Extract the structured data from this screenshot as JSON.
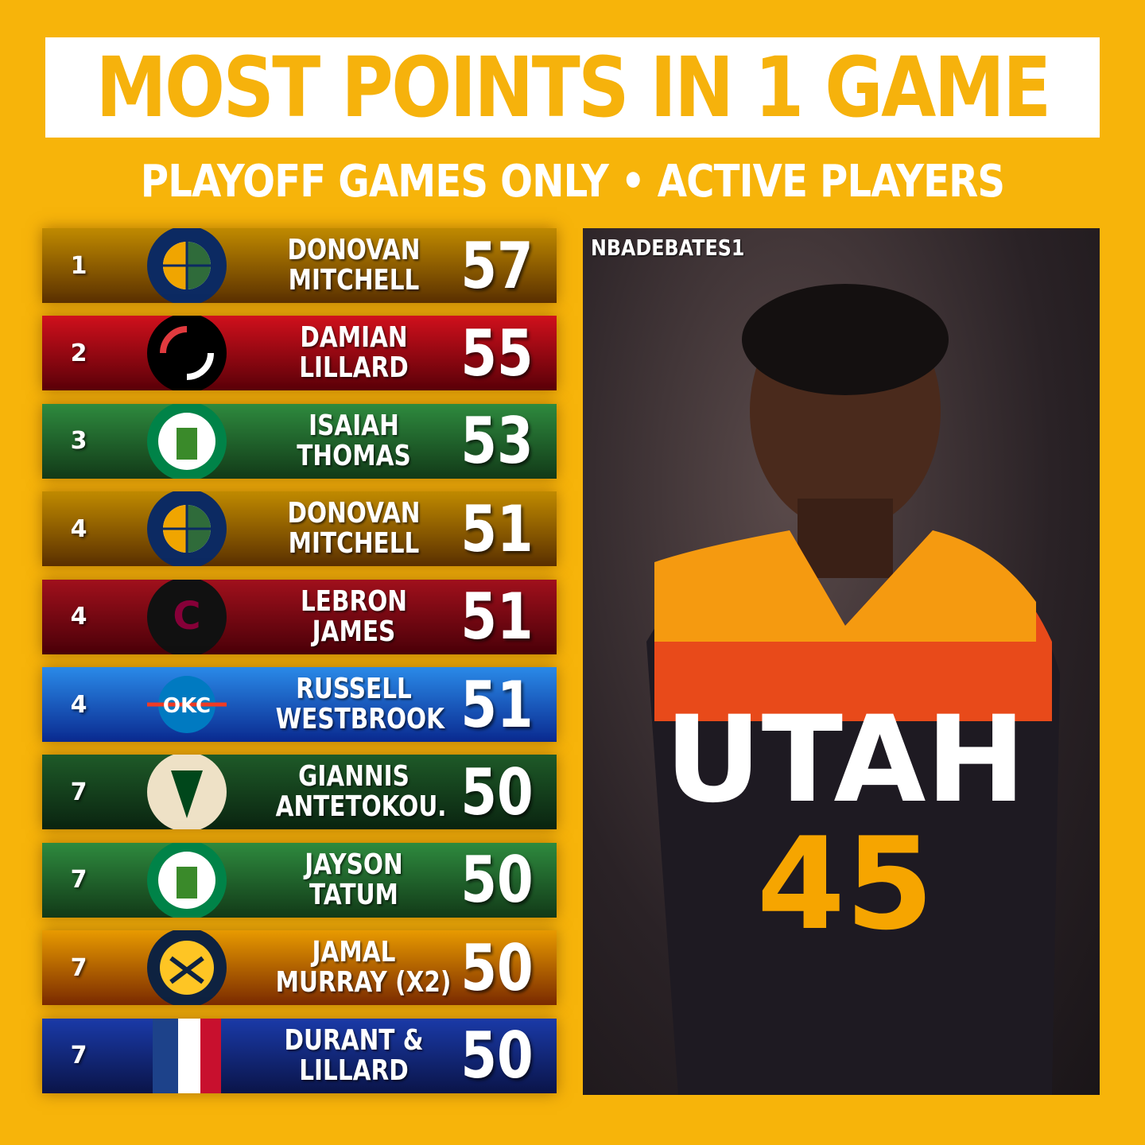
{
  "title": "MOST POINTS IN 1 GAME",
  "subtitle": "PLAYOFF GAMES ONLY • ACTIVE PLAYERS",
  "watermark": "NBADEBATES1",
  "jersey": {
    "team_text": "UTAH",
    "number": "45"
  },
  "rows": [
    {
      "rank": "1",
      "name1": "DONOVAN",
      "name2": "MITCHELL",
      "points": "57",
      "team": "jazz",
      "colors": [
        "#c08a00",
        "#5a3000"
      ]
    },
    {
      "rank": "2",
      "name1": "DAMIAN",
      "name2": "LILLARD",
      "points": "55",
      "team": "blazers",
      "colors": [
        "#d0101c",
        "#5a0008"
      ]
    },
    {
      "rank": "3",
      "name1": "ISAIAH",
      "name2": "THOMAS",
      "points": "53",
      "team": "celtics",
      "colors": [
        "#2e8a3e",
        "#123a18"
      ]
    },
    {
      "rank": "4",
      "name1": "DONOVAN",
      "name2": "MITCHELL",
      "points": "51",
      "team": "jazz",
      "colors": [
        "#c08a00",
        "#5a3000"
      ]
    },
    {
      "rank": "4",
      "name1": "LEBRON",
      "name2": "JAMES",
      "points": "51",
      "team": "cavaliers",
      "colors": [
        "#a0101c",
        "#4a0008"
      ]
    },
    {
      "rank": "4",
      "name1": "RUSSELL",
      "name2": "WESTBROOK",
      "points": "51",
      "team": "thunder",
      "colors": [
        "#2a8ae8",
        "#0a2a90"
      ]
    },
    {
      "rank": "7",
      "name1": "GIANNIS",
      "name2": "ANTETOKOU.",
      "points": "50",
      "team": "bucks",
      "colors": [
        "#1e5a28",
        "#0a2410"
      ]
    },
    {
      "rank": "7",
      "name1": "JAYSON",
      "name2": "TATUM",
      "points": "50",
      "team": "celtics",
      "colors": [
        "#2e8a3e",
        "#123a18"
      ]
    },
    {
      "rank": "7",
      "name1": "JAMAL",
      "name2": "MURRAY (X2)",
      "points": "50",
      "team": "nuggets",
      "colors": [
        "#e89a00",
        "#7a2a00"
      ]
    },
    {
      "rank": "7",
      "name1": "DURANT &",
      "name2": "LILLARD",
      "points": "50",
      "team": "nba",
      "colors": [
        "#1a3aa8",
        "#0a1448"
      ]
    }
  ]
}
